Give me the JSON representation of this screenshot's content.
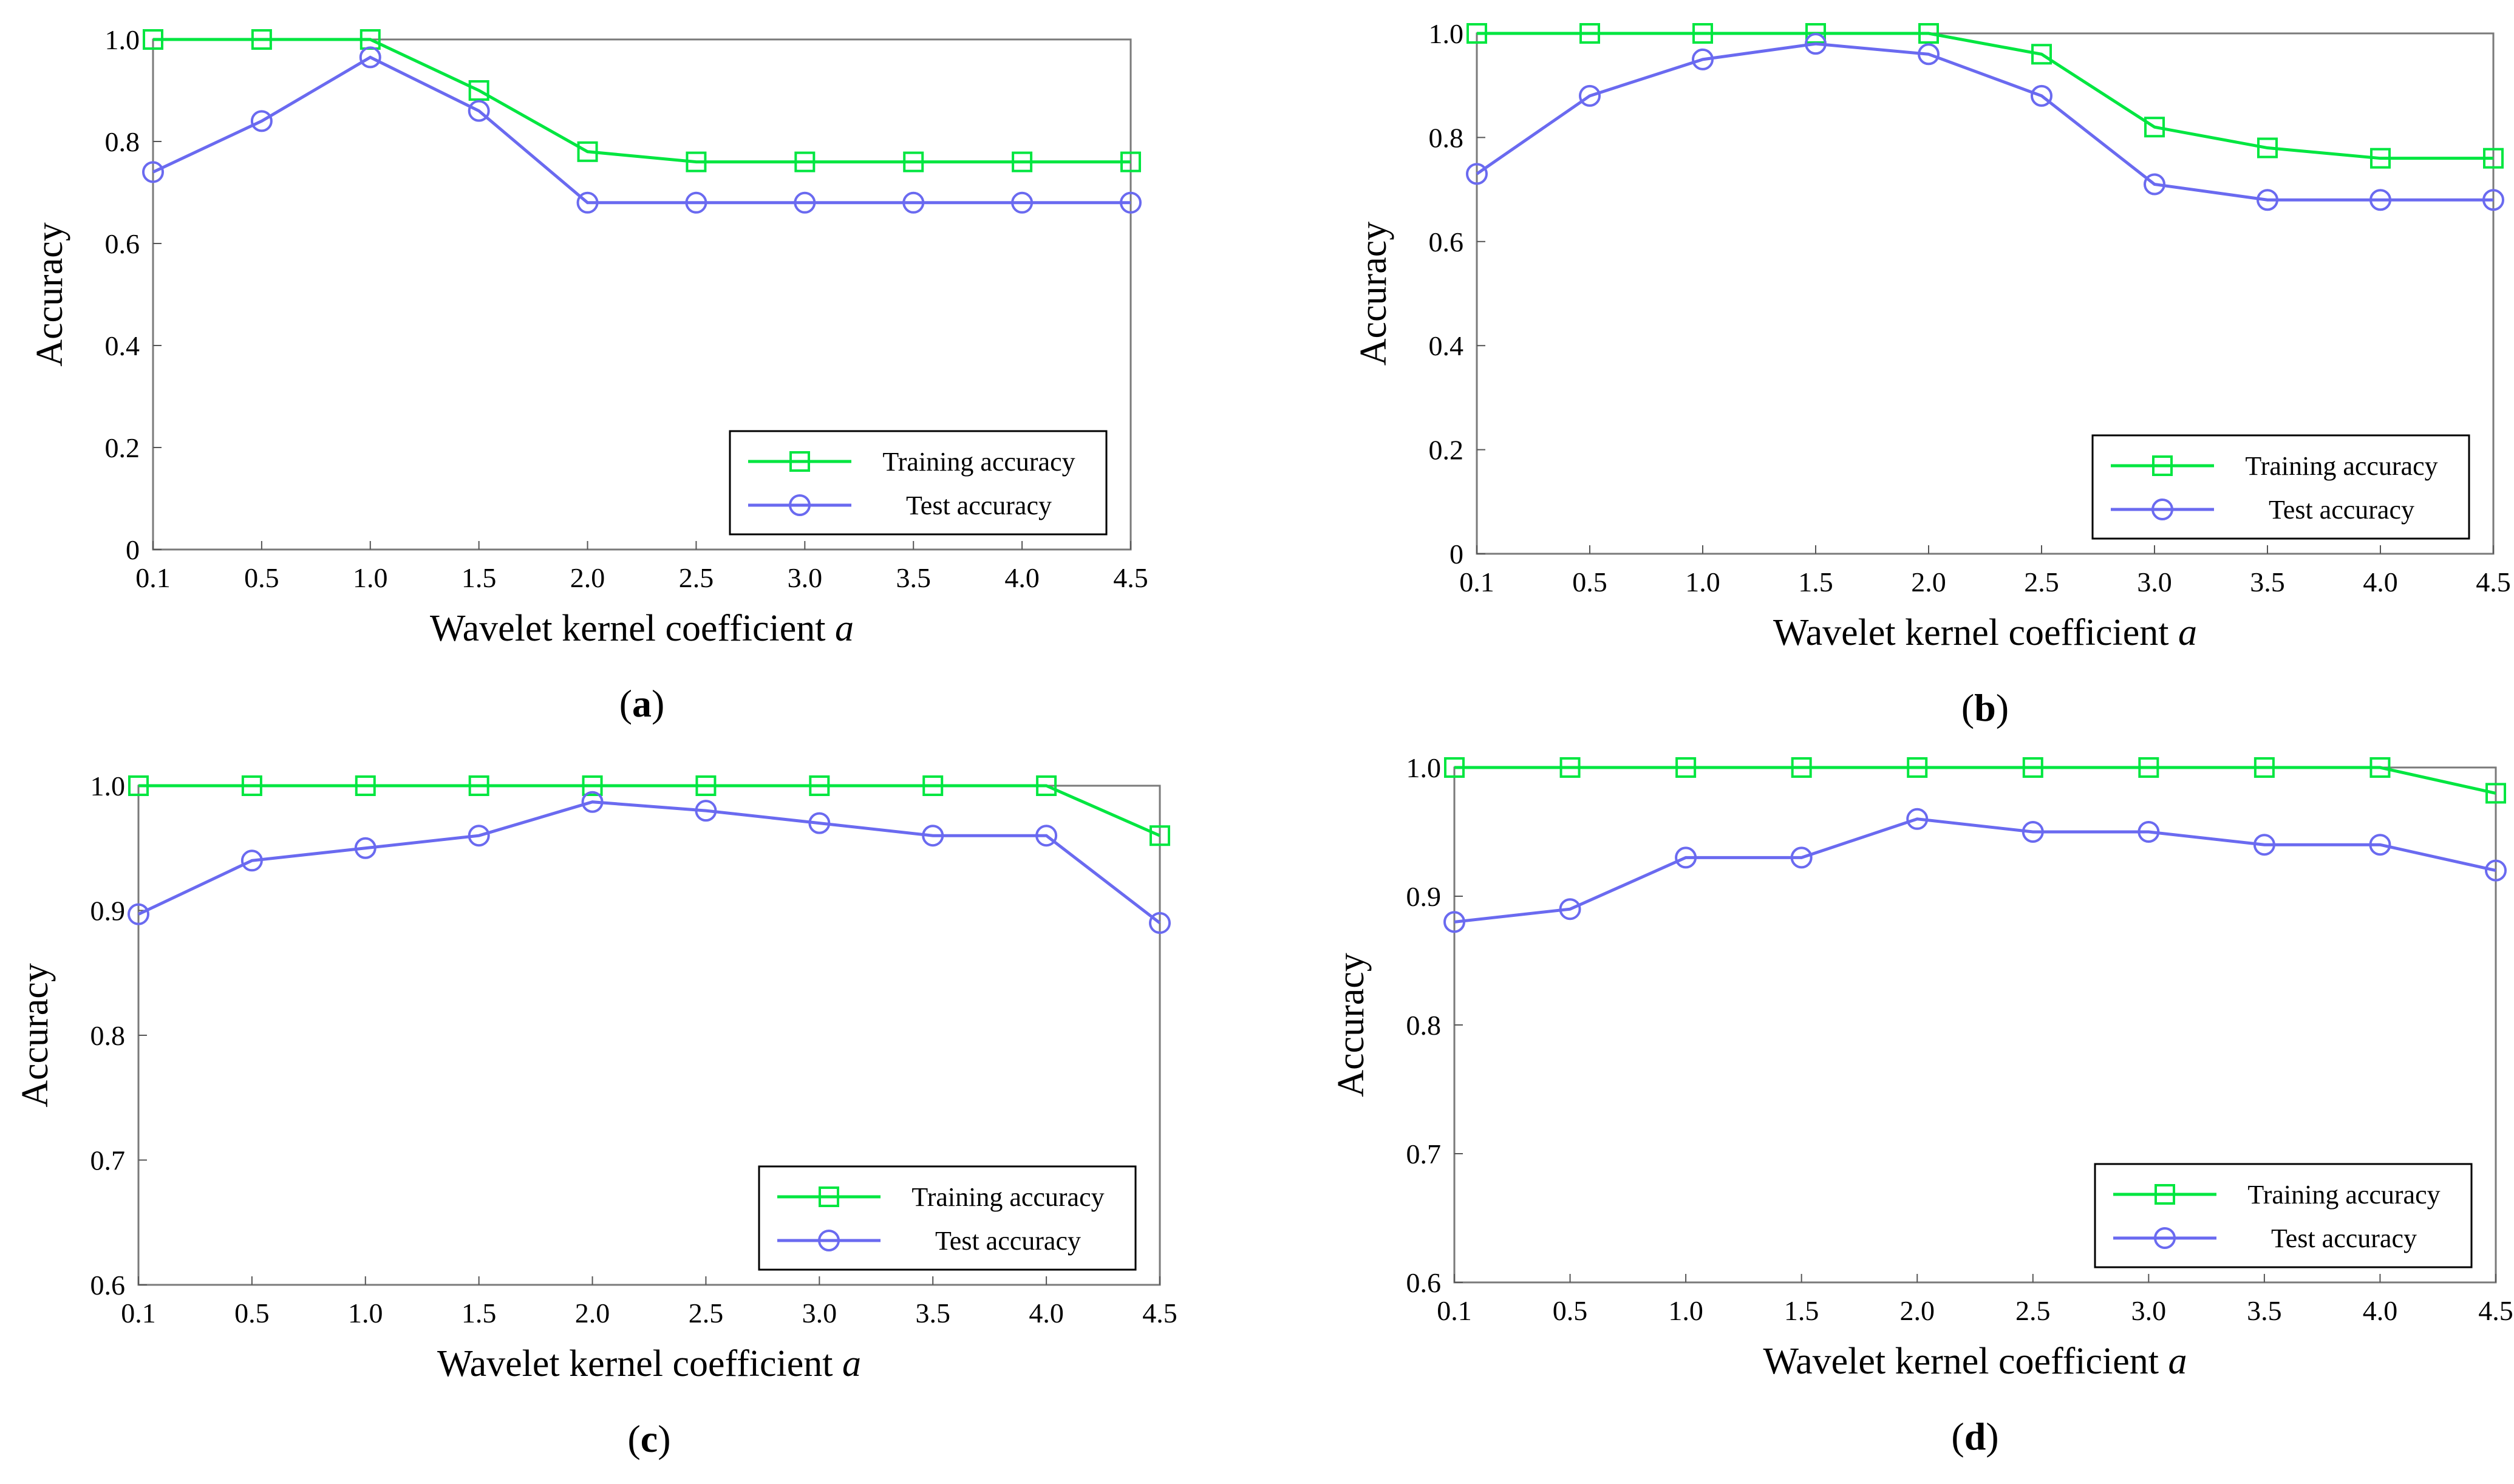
{
  "colors": {
    "training": "#00e640",
    "test": "#6a6af0"
  },
  "chart_data": [
    {
      "type": "line",
      "panel": "(a)",
      "panel_letter": "a",
      "xlabel": "Wavelet kernel coefficient",
      "xlabel_var": "a",
      "ylabel": "Accuracy",
      "categories": [
        "0.1",
        "0.5",
        "1.0",
        "1.5",
        "2.0",
        "2.5",
        "3.0",
        "3.5",
        "4.0",
        "4.5"
      ],
      "ylim": [
        0,
        1.0
      ],
      "yticks": [
        "0",
        "0.2",
        "0.4",
        "0.6",
        "0.8",
        "1.0"
      ],
      "ytick_values": [
        0,
        0.2,
        0.4,
        0.6,
        0.8,
        1.0
      ],
      "legend_position": "bottom-right",
      "series": [
        {
          "name": "Training accuracy",
          "marker": "square",
          "values": [
            1.0,
            1.0,
            1.0,
            0.9,
            0.78,
            0.76,
            0.76,
            0.76,
            0.76,
            0.76
          ]
        },
        {
          "name": "Test accuracy",
          "marker": "circle",
          "values": [
            0.74,
            0.84,
            0.965,
            0.86,
            0.68,
            0.68,
            0.68,
            0.68,
            0.68,
            0.68
          ]
        }
      ]
    },
    {
      "type": "line",
      "panel": "(b)",
      "panel_letter": "b",
      "xlabel": "Wavelet kernel coefficient",
      "xlabel_var": "a",
      "ylabel": "Accuracy",
      "categories": [
        "0.1",
        "0.5",
        "1.0",
        "1.5",
        "2.0",
        "2.5",
        "3.0",
        "3.5",
        "4.0",
        "4.5"
      ],
      "ylim": [
        0,
        1.0
      ],
      "yticks": [
        "0",
        "0.2",
        "0.4",
        "0.6",
        "0.8",
        "1.0"
      ],
      "ytick_values": [
        0,
        0.2,
        0.4,
        0.6,
        0.8,
        1.0
      ],
      "legend_position": "bottom-right",
      "series": [
        {
          "name": "Training accuracy",
          "marker": "square",
          "values": [
            1.0,
            1.0,
            1.0,
            1.0,
            1.0,
            0.96,
            0.82,
            0.78,
            0.76,
            0.76
          ]
        },
        {
          "name": "Test accuracy",
          "marker": "circle",
          "values": [
            0.73,
            0.88,
            0.95,
            0.98,
            0.96,
            0.88,
            0.71,
            0.68,
            0.68,
            0.68
          ]
        }
      ]
    },
    {
      "type": "line",
      "panel": "(c)",
      "panel_letter": "c",
      "xlabel": "Wavelet kernel coefficient",
      "xlabel_var": "a",
      "ylabel": "Accuracy",
      "categories": [
        "0.1",
        "0.5",
        "1.0",
        "1.5",
        "2.0",
        "2.5",
        "3.0",
        "3.5",
        "4.0",
        "4.5"
      ],
      "ylim": [
        0.6,
        1.0
      ],
      "yticks": [
        "0.6",
        "0.7",
        "0.8",
        "0.9",
        "1.0"
      ],
      "ytick_values": [
        0.6,
        0.7,
        0.8,
        0.9,
        1.0
      ],
      "legend_position": "bottom-right",
      "series": [
        {
          "name": "Training accuracy",
          "marker": "square",
          "values": [
            1.0,
            1.0,
            1.0,
            1.0,
            1.0,
            1.0,
            1.0,
            1.0,
            1.0,
            0.96
          ]
        },
        {
          "name": "Test accuracy",
          "marker": "circle",
          "values": [
            0.897,
            0.94,
            0.95,
            0.96,
            0.987,
            0.98,
            0.97,
            0.96,
            0.96,
            0.89
          ]
        }
      ]
    },
    {
      "type": "line",
      "panel": "(d)",
      "panel_letter": "d",
      "xlabel": "Wavelet kernel coefficient",
      "xlabel_var": "a",
      "ylabel": "Accuracy",
      "categories": [
        "0.1",
        "0.5",
        "1.0",
        "1.5",
        "2.0",
        "2.5",
        "3.0",
        "3.5",
        "4.0",
        "4.5"
      ],
      "ylim": [
        0.6,
        1.0
      ],
      "yticks": [
        "0.6",
        "0.7",
        "0.8",
        "0.9",
        "1.0"
      ],
      "ytick_values": [
        0.6,
        0.7,
        0.8,
        0.9,
        1.0
      ],
      "legend_position": "bottom-right",
      "series": [
        {
          "name": "Training accuracy",
          "marker": "square",
          "values": [
            1.0,
            1.0,
            1.0,
            1.0,
            1.0,
            1.0,
            1.0,
            1.0,
            1.0,
            0.98
          ]
        },
        {
          "name": "Test accuracy",
          "marker": "circle",
          "values": [
            0.88,
            0.89,
            0.93,
            0.93,
            0.96,
            0.95,
            0.95,
            0.94,
            0.94,
            0.92
          ]
        }
      ]
    }
  ]
}
